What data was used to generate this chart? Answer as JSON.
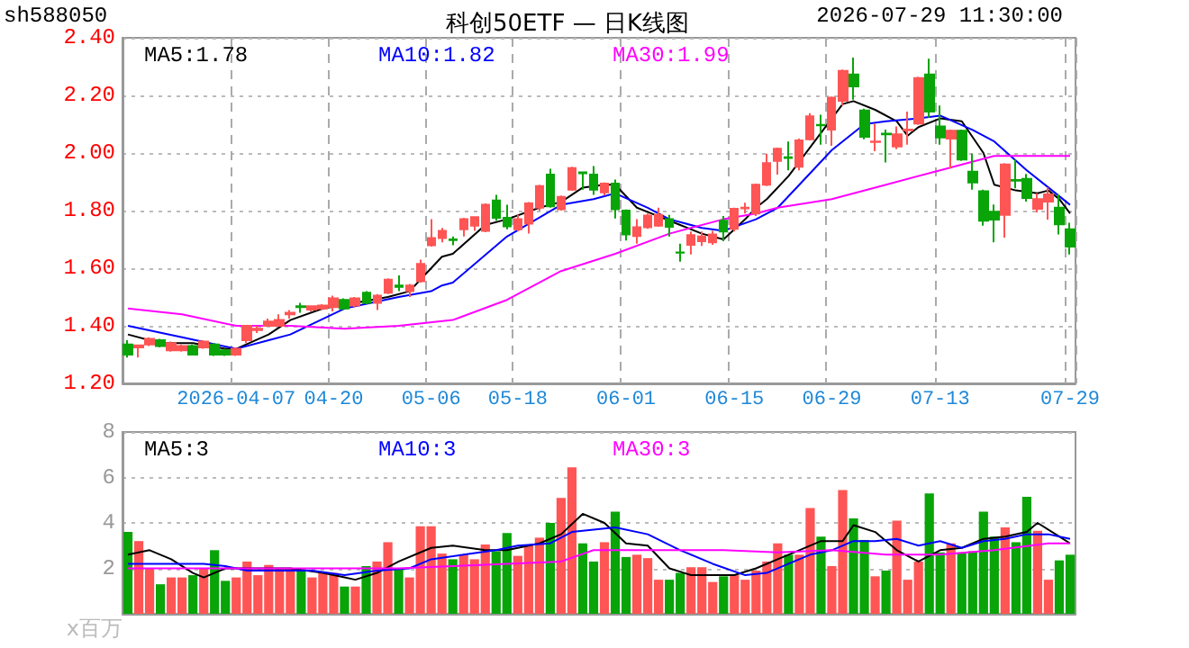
{
  "chart_data": [
    {
      "type": "candlestick",
      "title": "科创50ETF — 日K线图",
      "annotations": [
        "sh588050",
        "2026-07-29 11:30:00"
      ],
      "categories": [
        null,
        null,
        null,
        null,
        null,
        null,
        null,
        null,
        null,
        null,
        "2026-04-07",
        null,
        null,
        null,
        null,
        null,
        null,
        null,
        null,
        "04-20",
        null,
        null,
        null,
        null,
        null,
        null,
        null,
        null,
        "05-06",
        null,
        null,
        null,
        null,
        null,
        null,
        null,
        "05-18",
        null,
        null,
        null,
        null,
        null,
        null,
        null,
        null,
        null,
        "06-01",
        null,
        null,
        null,
        null,
        null,
        null,
        null,
        null,
        null,
        "06-15",
        null,
        null,
        null,
        null,
        null,
        null,
        null,
        null,
        "06-29",
        null,
        null,
        null,
        null,
        null,
        null,
        null,
        null,
        null,
        "07-13",
        null,
        null,
        null,
        null,
        null,
        null,
        null,
        null,
        null,
        null,
        null,
        "07-29"
      ],
      "ohlc": [
        [
          1.335,
          1.35,
          1.29,
          1.3
        ],
        [
          1.325,
          1.335,
          1.29,
          1.332
        ],
        [
          1.335,
          1.36,
          1.33,
          1.355
        ],
        [
          1.35,
          1.355,
          1.325,
          1.33
        ],
        [
          1.315,
          1.345,
          1.31,
          1.34
        ],
        [
          1.315,
          1.335,
          1.31,
          1.33
        ],
        [
          1.33,
          1.335,
          1.298,
          1.3
        ],
        [
          1.325,
          1.35,
          1.32,
          1.345
        ],
        [
          1.335,
          1.34,
          1.295,
          1.3
        ],
        [
          1.315,
          1.32,
          1.295,
          1.3
        ],
        [
          1.3,
          1.325,
          1.295,
          1.32
        ],
        [
          1.35,
          1.4,
          1.34,
          1.4
        ],
        [
          1.385,
          1.4,
          1.375,
          1.39
        ],
        [
          1.4,
          1.425,
          1.4,
          1.415
        ],
        [
          1.4,
          1.44,
          1.4,
          1.42
        ],
        [
          1.44,
          1.455,
          1.425,
          1.445
        ],
        [
          1.468,
          1.48,
          1.445,
          1.465
        ],
        [
          1.456,
          1.47,
          1.45,
          1.468
        ],
        [
          1.46,
          1.475,
          1.455,
          1.47
        ],
        [
          1.465,
          1.505,
          1.45,
          1.495
        ],
        [
          1.49,
          1.495,
          1.455,
          1.46
        ],
        [
          1.47,
          1.5,
          1.465,
          1.495
        ],
        [
          1.515,
          1.52,
          1.475,
          1.48
        ],
        [
          1.48,
          1.51,
          1.455,
          1.505
        ],
        [
          1.515,
          1.565,
          1.51,
          1.56
        ],
        [
          1.54,
          1.575,
          1.52,
          1.535
        ],
        [
          1.52,
          1.545,
          1.5,
          1.54
        ],
        [
          1.555,
          1.63,
          1.55,
          1.615
        ],
        [
          1.68,
          1.77,
          1.675,
          1.705
        ],
        [
          1.705,
          1.74,
          1.69,
          1.73
        ],
        [
          1.7,
          1.71,
          1.68,
          1.698
        ],
        [
          1.735,
          1.775,
          1.71,
          1.77
        ],
        [
          1.748,
          1.78,
          1.73,
          1.777
        ],
        [
          1.73,
          1.825,
          1.725,
          1.82
        ],
        [
          1.835,
          1.855,
          1.765,
          1.775
        ],
        [
          1.775,
          1.82,
          1.735,
          1.745
        ],
        [
          1.735,
          1.785,
          1.727,
          1.77
        ],
        [
          1.755,
          1.83,
          1.72,
          1.825
        ],
        [
          1.81,
          1.89,
          1.8,
          1.885
        ],
        [
          1.925,
          1.945,
          1.81,
          1.815
        ],
        [
          1.805,
          1.852,
          1.8,
          1.848
        ],
        [
          1.873,
          1.952,
          1.869,
          1.948
        ],
        [
          1.933,
          1.935,
          1.873,
          1.93
        ],
        [
          1.925,
          1.955,
          1.855,
          1.873
        ],
        [
          1.863,
          1.898,
          1.852,
          1.894
        ],
        [
          1.894,
          1.908,
          1.773,
          1.805
        ],
        [
          1.8,
          1.804,
          1.696,
          1.717
        ],
        [
          1.712,
          1.77,
          1.685,
          1.742
        ],
        [
          1.742,
          1.79,
          1.737,
          1.783
        ],
        [
          1.748,
          1.81,
          1.744,
          1.785
        ],
        [
          1.77,
          1.785,
          1.71,
          1.744
        ],
        [
          1.655,
          1.685,
          1.623,
          1.654
        ],
        [
          1.681,
          1.727,
          1.648,
          1.715
        ],
        [
          1.694,
          1.727,
          1.677,
          1.71
        ],
        [
          1.69,
          1.73,
          1.681,
          1.717
        ],
        [
          1.765,
          1.781,
          1.694,
          1.727
        ],
        [
          1.737,
          1.81,
          1.727,
          1.806
        ],
        [
          1.808,
          1.827,
          1.79,
          1.81
        ],
        [
          1.79,
          1.894,
          1.781,
          1.89
        ],
        [
          1.89,
          1.998,
          1.885,
          1.965
        ],
        [
          1.973,
          2.019,
          1.925,
          2.015
        ],
        [
          1.985,
          2.04,
          1.94,
          1.983
        ],
        [
          1.952,
          2.05,
          1.94,
          2.044
        ],
        [
          2.048,
          2.138,
          2.044,
          2.127
        ],
        [
          2.098,
          2.133,
          2.029,
          2.096
        ],
        [
          2.081,
          2.196,
          2.025,
          2.192
        ],
        [
          2.181,
          2.29,
          2.165,
          2.285
        ],
        [
          2.273,
          2.331,
          2.185,
          2.231
        ],
        [
          2.148,
          2.154,
          2.048,
          2.056
        ],
        [
          2.038,
          2.102,
          2.006,
          2.04
        ],
        [
          2.067,
          2.081,
          1.967,
          2.065
        ],
        [
          2.023,
          2.092,
          2.013,
          2.065
        ],
        [
          2.079,
          2.144,
          2.029,
          2.081
        ],
        [
          2.102,
          2.265,
          2.098,
          2.26
        ],
        [
          2.273,
          2.327,
          2.123,
          2.144
        ],
        [
          2.092,
          2.165,
          2.029,
          2.054
        ],
        [
          2.05,
          2.081,
          1.946,
          2.077
        ],
        [
          2.077,
          2.081,
          1.973,
          1.977
        ],
        [
          1.935,
          1.998,
          1.873,
          1.898
        ],
        [
          1.867,
          1.873,
          1.748,
          1.765
        ],
        [
          1.796,
          1.821,
          1.69,
          1.769
        ],
        [
          1.785,
          1.965,
          1.706,
          1.96
        ],
        [
          1.906,
          1.977,
          1.877,
          1.904
        ],
        [
          1.91,
          1.927,
          1.831,
          1.844
        ],
        [
          1.806,
          1.86,
          1.794,
          1.84
        ],
        [
          1.831,
          1.881,
          1.769,
          1.856
        ],
        [
          1.81,
          1.856,
          1.717,
          1.752
        ],
        [
          1.735,
          1.758,
          1.648,
          1.675
        ]
      ],
      "colors": [
        "#08a408",
        "#ff5555",
        "#ff5555",
        "#08a408",
        "#ff5555",
        "#ff5555",
        "#08a408",
        "#ff5555",
        "#08a408",
        "#08a408",
        "#ff5555",
        "#ff5555",
        "#ff5555",
        "#ff5555",
        "#ff5555",
        "#ff5555",
        "#08a408",
        "#ff5555",
        "#ff5555",
        "#ff5555",
        "#08a408",
        "#ff5555",
        "#08a408",
        "#ff5555",
        "#ff5555",
        "#08a408",
        "#ff5555",
        "#ff5555",
        "#ff5555",
        "#ff5555",
        "#08a408",
        "#ff5555",
        "#ff5555",
        "#ff5555",
        "#08a408",
        "#08a408",
        "#ff5555",
        "#ff5555",
        "#ff5555",
        "#08a408",
        "#ff5555",
        "#ff5555",
        "#08a408",
        "#08a408",
        "#ff5555",
        "#08a408",
        "#08a408",
        "#ff5555",
        "#ff5555",
        "#ff5555",
        "#08a408",
        "#08a408",
        "#ff5555",
        "#ff5555",
        "#ff5555",
        "#08a408",
        "#ff5555",
        "#ff5555",
        "#ff5555",
        "#ff5555",
        "#ff5555",
        "#08a408",
        "#ff5555",
        "#ff5555",
        "#08a408",
        "#ff5555",
        "#ff5555",
        "#08a408",
        "#08a408",
        "#ff5555",
        "#08a408",
        "#ff5555",
        "#ff5555",
        "#ff5555",
        "#08a408",
        "#08a408",
        "#ff5555",
        "#08a408",
        "#08a408",
        "#08a408",
        "#08a408",
        "#ff5555",
        "#08a408",
        "#08a408",
        "#ff5555",
        "#ff5555",
        "#08a408",
        "#08a408"
      ],
      "series": [
        {
          "type": "line",
          "name": "MA5:1.78",
          "color": "#000000",
          "values": [
            1.37,
            null,
            null,
            1.34,
            null,
            null,
            1.34,
            null,
            null,
            1.32,
            1.32,
            null,
            null,
            1.37,
            null,
            1.42,
            null,
            null,
            1.46,
            null,
            null,
            1.48,
            null,
            null,
            1.5,
            null,
            1.52,
            null,
            1.6,
            1.64,
            1.65,
            null,
            null,
            1.75,
            null,
            1.77,
            null,
            null,
            1.81,
            null,
            1.83,
            null,
            1.88,
            null,
            1.89,
            1.89,
            null,
            1.81,
            null,
            1.78,
            null,
            1.75,
            null,
            1.72,
            null,
            1.7,
            null,
            1.77,
            1.81,
            1.84,
            null,
            1.92,
            null,
            2.02,
            null,
            2.12,
            2.17,
            2.18,
            null,
            2.15,
            null,
            2.11,
            2.06,
            2.09,
            null,
            2.12,
            null,
            2.11,
            null,
            2.0,
            1.89,
            null,
            1.87,
            null,
            1.86,
            1.87,
            1.84,
            1.79
          ]
        },
        {
          "type": "line",
          "name": "MA10:1.82",
          "color": "#0000ff",
          "values": [
            1.4,
            null,
            null,
            null,
            null,
            1.36,
            null,
            null,
            null,
            null,
            1.32,
            null,
            null,
            1.35,
            null,
            1.37,
            null,
            null,
            null,
            null,
            1.46,
            null,
            null,
            null,
            null,
            1.5,
            null,
            null,
            1.52,
            1.54,
            1.55,
            null,
            null,
            null,
            null,
            1.71,
            null,
            null,
            null,
            null,
            1.82,
            null,
            null,
            1.84,
            null,
            1.86,
            null,
            null,
            1.81,
            null,
            1.77,
            null,
            null,
            1.74,
            null,
            1.73,
            null,
            null,
            1.77,
            null,
            1.81,
            null,
            1.89,
            null,
            null,
            2.01,
            null,
            null,
            2.1,
            null,
            2.11,
            null,
            null,
            2.12,
            null,
            2.13,
            null,
            null,
            2.08,
            null,
            2.04,
            null,
            null,
            1.94,
            null,
            1.88,
            null,
            1.82
          ]
        },
        {
          "type": "line",
          "name": "MA30:1.99",
          "color": "#ff00ff",
          "values": [
            1.46,
            null,
            null,
            null,
            null,
            1.44,
            null,
            null,
            null,
            null,
            1.4,
            null,
            null,
            null,
            null,
            1.4,
            null,
            null,
            null,
            null,
            1.39,
            null,
            null,
            null,
            null,
            1.4,
            null,
            null,
            null,
            null,
            1.42,
            null,
            null,
            null,
            null,
            1.49,
            null,
            null,
            null,
            null,
            1.59,
            null,
            null,
            null,
            null,
            1.65,
            null,
            null,
            null,
            null,
            1.72,
            null,
            null,
            null,
            null,
            1.77,
            null,
            null,
            1.79,
            null,
            1.81,
            null,
            null,
            null,
            null,
            1.84,
            null,
            null,
            null,
            null,
            1.89,
            null,
            null,
            null,
            null,
            1.94,
            null,
            null,
            null,
            null,
            1.99,
            null,
            null,
            null,
            null,
            1.99,
            null,
            1.99
          ]
        }
      ],
      "ylim": [
        1.2,
        2.4
      ],
      "yticks": [
        {
          "value": 1.2,
          "label": "1.20"
        },
        {
          "value": 1.4,
          "label": "1.40"
        },
        {
          "value": 1.6,
          "label": "1.60"
        },
        {
          "value": 1.8,
          "label": "1.80"
        },
        {
          "value": 2.0,
          "label": "2.00"
        },
        {
          "value": 2.2,
          "label": "2.20"
        },
        {
          "value": 2.4,
          "label": "2.40"
        }
      ],
      "grid": true,
      "legend": "top left"
    },
    {
      "type": "bar",
      "ylabel": "x百万",
      "categories": [
        null,
        null,
        null,
        null,
        null,
        null,
        null,
        null,
        null,
        null,
        null,
        null,
        null,
        null,
        null,
        null,
        null,
        null,
        null,
        null,
        null,
        null,
        null,
        null,
        null,
        null,
        null,
        null,
        null,
        null,
        null,
        null,
        null,
        null,
        null,
        null,
        null,
        null,
        null,
        null,
        null,
        null,
        null,
        null,
        null,
        null,
        null,
        null,
        null,
        null,
        null,
        null,
        null,
        null,
        null,
        null,
        null,
        null,
        null,
        null,
        null,
        null,
        null,
        null,
        null,
        null,
        null,
        null,
        null,
        null,
        null,
        null,
        null,
        null,
        null,
        null,
        null,
        null,
        null,
        null,
        null,
        null,
        null,
        null,
        null,
        null,
        null,
        null
      ],
      "series": [
        {
          "type": "bar",
          "values": [
            3.6,
            3.2,
            2.0,
            1.3,
            1.6,
            1.6,
            1.7,
            2.0,
            2.8,
            1.45,
            1.6,
            2.3,
            1.7,
            2.15,
            2.0,
            2.0,
            1.9,
            1.6,
            1.8,
            1.8,
            1.2,
            1.2,
            2.1,
            2.3,
            3.15,
            2.0,
            1.6,
            3.85,
            3.85,
            2.65,
            2.4,
            2.6,
            2.4,
            3.05,
            2.75,
            3.55,
            2.55,
            3.05,
            3.35,
            4.0,
            5.1,
            6.45,
            3.1,
            2.3,
            3.15,
            4.5,
            2.5,
            2.6,
            2.45,
            1.5,
            1.5,
            1.8,
            2.05,
            2.05,
            1.4,
            1.65,
            1.7,
            1.5,
            1.9,
            2.3,
            3.1,
            2.6,
            2.6,
            4.65,
            3.4,
            2.1,
            5.45,
            4.2,
            3.25,
            1.65,
            1.9,
            4.1,
            1.5,
            2.3,
            5.3,
            2.7,
            3.1,
            2.7,
            2.75,
            4.5,
            3.4,
            3.8,
            3.15,
            5.15,
            3.65,
            1.5,
            2.35,
            2.6
          ],
          "colors": [
            "#08a408",
            "#ff5555",
            "#ff5555",
            "#08a408",
            "#ff5555",
            "#ff5555",
            "#08a408",
            "#ff5555",
            "#08a408",
            "#08a408",
            "#ff5555",
            "#ff5555",
            "#ff5555",
            "#ff5555",
            "#ff5555",
            "#ff5555",
            "#08a408",
            "#ff5555",
            "#ff5555",
            "#ff5555",
            "#08a408",
            "#ff5555",
            "#08a408",
            "#ff5555",
            "#ff5555",
            "#08a408",
            "#ff5555",
            "#ff5555",
            "#ff5555",
            "#ff5555",
            "#08a408",
            "#ff5555",
            "#ff5555",
            "#ff5555",
            "#08a408",
            "#08a408",
            "#ff5555",
            "#ff5555",
            "#ff5555",
            "#08a408",
            "#ff5555",
            "#ff5555",
            "#08a408",
            "#08a408",
            "#ff5555",
            "#08a408",
            "#08a408",
            "#ff5555",
            "#ff5555",
            "#ff5555",
            "#08a408",
            "#08a408",
            "#ff5555",
            "#ff5555",
            "#ff5555",
            "#08a408",
            "#ff5555",
            "#ff5555",
            "#ff5555",
            "#ff5555",
            "#ff5555",
            "#08a408",
            "#ff5555",
            "#ff5555",
            "#08a408",
            "#ff5555",
            "#ff5555",
            "#08a408",
            "#08a408",
            "#ff5555",
            "#08a408",
            "#ff5555",
            "#ff5555",
            "#ff5555",
            "#08a408",
            "#08a408",
            "#ff5555",
            "#08a408",
            "#08a408",
            "#08a408",
            "#08a408",
            "#ff5555",
            "#08a408",
            "#08a408",
            "#ff5555",
            "#ff5555",
            "#08a408",
            "#08a408"
          ]
        },
        {
          "type": "line",
          "name": "MA5:3",
          "color": "#000000",
          "values": [
            2.6,
            null,
            2.8,
            null,
            2.4,
            null,
            1.8,
            1.6,
            null,
            2.0,
            null,
            null,
            2.0,
            null,
            null,
            2.0,
            null,
            null,
            1.8,
            null,
            1.6,
            1.5,
            null,
            1.8,
            null,
            2.3,
            null,
            null,
            2.9,
            null,
            3.0,
            null,
            null,
            2.8,
            null,
            2.8,
            null,
            null,
            3.1,
            null,
            3.5,
            null,
            4.4,
            null,
            4.0,
            null,
            3.1,
            null,
            3.0,
            null,
            2.0,
            null,
            1.7,
            null,
            1.7,
            null,
            1.7,
            null,
            2.0,
            null,
            2.4,
            null,
            2.8,
            null,
            3.2,
            null,
            3.2,
            3.9,
            null,
            3.6,
            null,
            2.8,
            null,
            2.3,
            null,
            2.8,
            null,
            2.9,
            null,
            3.3,
            null,
            3.4,
            null,
            3.6,
            4.0,
            null,
            3.4,
            3.1
          ]
        },
        {
          "type": "line",
          "name": "MA10:3",
          "color": "#0000ff",
          "values": [
            2.2,
            null,
            null,
            2.2,
            null,
            null,
            null,
            2.2,
            null,
            2.1,
            null,
            1.9,
            null,
            null,
            1.9,
            null,
            null,
            1.9,
            null,
            null,
            1.7,
            null,
            null,
            1.9,
            null,
            null,
            2.0,
            null,
            2.4,
            null,
            null,
            2.6,
            null,
            null,
            2.8,
            null,
            3.0,
            null,
            null,
            3.1,
            null,
            3.6,
            null,
            3.7,
            null,
            3.8,
            null,
            null,
            3.5,
            null,
            null,
            2.8,
            null,
            null,
            2.2,
            null,
            null,
            1.7,
            null,
            1.8,
            null,
            2.2,
            null,
            2.6,
            null,
            2.8,
            null,
            3.2,
            null,
            3.2,
            null,
            3.3,
            null,
            3.0,
            null,
            3.2,
            null,
            2.9,
            null,
            3.2,
            null,
            3.3,
            null,
            3.5,
            null,
            3.5,
            null,
            3.3
          ]
        },
        {
          "type": "line",
          "name": "MA30:3",
          "color": "#ff00ff",
          "values": [
            2.0,
            null,
            null,
            null,
            null,
            2.0,
            null,
            null,
            null,
            null,
            2.0,
            null,
            null,
            null,
            null,
            2.0,
            null,
            null,
            null,
            null,
            2.0,
            null,
            null,
            null,
            null,
            2.0,
            null,
            null,
            null,
            null,
            2.1,
            null,
            null,
            null,
            null,
            2.2,
            null,
            null,
            null,
            null,
            2.3,
            null,
            null,
            2.8,
            null,
            2.8,
            null,
            null,
            null,
            null,
            2.8,
            null,
            null,
            null,
            null,
            2.8,
            null,
            null,
            null,
            null,
            2.7,
            null,
            null,
            null,
            null,
            2.8,
            null,
            null,
            null,
            null,
            2.6,
            null,
            null,
            null,
            null,
            2.6,
            null,
            null,
            null,
            null,
            2.8,
            null,
            null,
            null,
            null,
            3.1,
            null,
            3.1
          ]
        }
      ],
      "ylim": [
        0,
        8
      ],
      "yticks": [
        {
          "value": 0,
          "label": null
        },
        2,
        4,
        6,
        8
      ],
      "grid": true,
      "legend": "top left",
      "tick_labels": "y"
    }
  ]
}
